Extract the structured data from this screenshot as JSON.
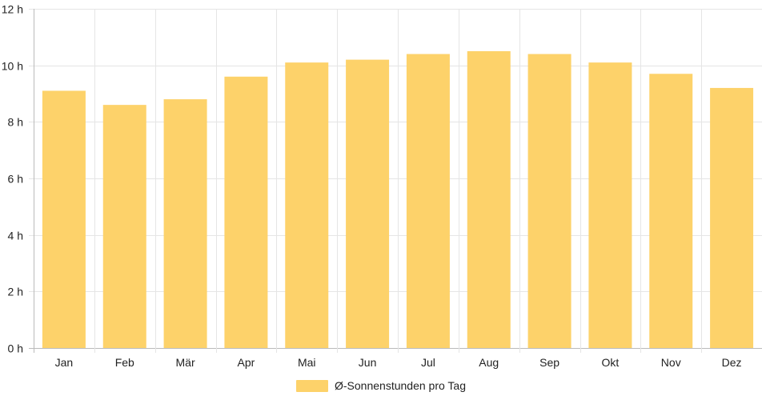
{
  "chart_data": {
    "type": "bar",
    "categories": [
      "Jan",
      "Feb",
      "Mär",
      "Apr",
      "Mai",
      "Jun",
      "Jul",
      "Aug",
      "Sep",
      "Okt",
      "Nov",
      "Dez"
    ],
    "series": [
      {
        "name": "Ø-Sonnenstunden pro Tag",
        "values": [
          9.1,
          8.6,
          8.8,
          9.6,
          10.1,
          10.2,
          10.4,
          10.5,
          10.4,
          10.1,
          9.7,
          9.2
        ]
      }
    ],
    "ylim": [
      0,
      12
    ],
    "yticks": [
      "0 h",
      "2 h",
      "4 h",
      "6 h",
      "8 h",
      "10 h",
      "12 h"
    ],
    "grid": true,
    "legend_position": "bottom",
    "colors": {
      "bar": "#fdd26a",
      "grid": "#e5e5e5",
      "axis": "#bbbbbb"
    }
  }
}
